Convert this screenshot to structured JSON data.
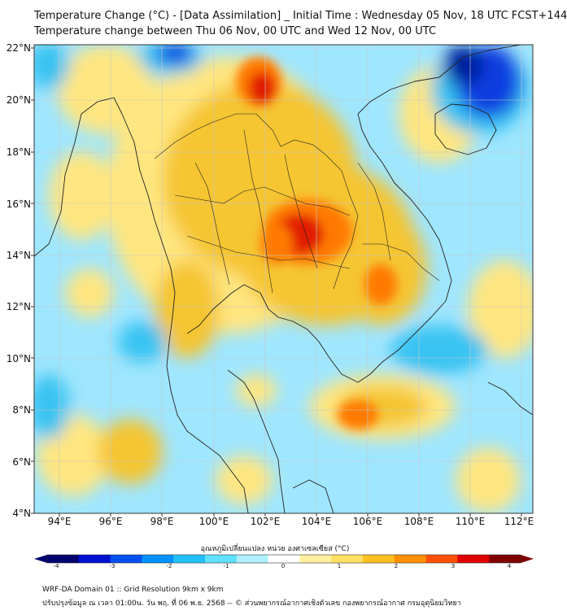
{
  "title_line1": "Temperature Change (°C) - [Data Assimilation] _ Initial Time : Wednesday 05 Nov, 18 UTC FCST+144",
  "title_line2": "Temperature change between Thu 06 Nov, 00 UTC and Wed 12 Nov, 00 UTC",
  "lat_labels": [
    "22°N",
    "20°N",
    "18°N",
    "16°N",
    "14°N",
    "12°N",
    "10°N",
    "8°N",
    "6°N",
    "4°N"
  ],
  "lon_labels": [
    "94°E",
    "96°E",
    "98°E",
    "100°E",
    "102°E",
    "104°E",
    "106°E",
    "108°E",
    "110°E",
    "112°E"
  ],
  "colorbar": {
    "label": "อุณหภูมิเปลี่ยนแปลง หน่วย องศาเซลเซียส (°C)",
    "ticks": [
      "-4",
      "-3",
      "-2",
      "-1",
      "0",
      "1",
      "2",
      "3",
      "4"
    ],
    "colors": [
      "#00006e",
      "#0010d0",
      "#0050f0",
      "#0090ff",
      "#20c0ff",
      "#60e0ff",
      "#b0f0ff",
      "#ffffff",
      "#fff0a0",
      "#ffe060",
      "#ffc020",
      "#ff9000",
      "#ff5000",
      "#e00000",
      "#800000"
    ]
  },
  "footer_line1": "WRF-DA Domain 01 :: Grid Resolution 9km x 9km",
  "footer_line2": "ปรับปรุงข้อมูล ณ เวลา 01:00น. วัน พฤ. ที่ 06 พ.ย. 2568 -- © ส่วนพยากรณ์อากาศเชิงตัวเลข กองพยากรณ์อากาศ กรมอุตุนิยมวิทยา",
  "colors": {
    "warm_light": "#ffe680",
    "warm_mid": "#f5c533",
    "warm_hot": "#ff7a00",
    "warm_peak": "#e21a00",
    "cool_light": "#9fe6ff",
    "cool_mid": "#38c3f2",
    "cool_deep": "#0a3ee0",
    "cool_peak": "#001a9e",
    "coast": "#222222"
  }
}
